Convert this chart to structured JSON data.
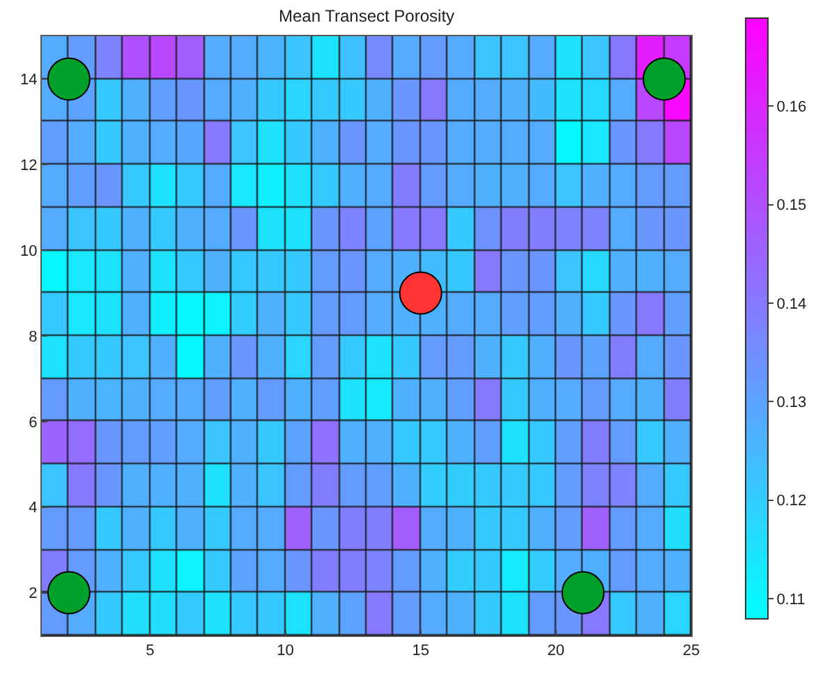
{
  "chart_data": {
    "type": "heatmap",
    "title": "Mean Transect Porosity",
    "x": [
      1.5,
      2.5,
      3.5,
      4.5,
      5.5,
      6.5,
      7.5,
      8.5,
      9.5,
      10.5,
      11.5,
      12.5,
      13.5,
      14.5,
      15.5,
      16.5,
      17.5,
      18.5,
      19.5,
      20.5,
      21.5,
      22.5,
      23.5,
      24.5
    ],
    "y": [
      14.5,
      13.5,
      12.5,
      11.5,
      10.5,
      9.5,
      8.5,
      7.5,
      6.5,
      5.5,
      4.5,
      3.5,
      2.5,
      1.5
    ],
    "cells": [
      [
        0.128,
        0.132,
        0.138,
        0.15,
        0.152,
        0.147,
        0.128,
        0.128,
        0.126,
        0.122,
        0.115,
        0.123,
        0.136,
        0.128,
        0.132,
        0.128,
        0.122,
        0.122,
        0.128,
        0.115,
        0.122,
        0.14,
        0.162,
        0.155
      ],
      [
        0.128,
        0.13,
        0.121,
        0.127,
        0.131,
        0.133,
        0.128,
        0.127,
        0.121,
        0.118,
        0.121,
        0.121,
        0.127,
        0.133,
        0.14,
        0.128,
        0.128,
        0.127,
        0.124,
        0.115,
        0.117,
        0.128,
        0.152,
        0.167
      ],
      [
        0.131,
        0.128,
        0.121,
        0.127,
        0.128,
        0.129,
        0.14,
        0.122,
        0.115,
        0.121,
        0.127,
        0.133,
        0.128,
        0.133,
        0.133,
        0.128,
        0.128,
        0.128,
        0.128,
        0.11,
        0.114,
        0.133,
        0.14,
        0.152
      ],
      [
        0.128,
        0.131,
        0.133,
        0.121,
        0.115,
        0.121,
        0.128,
        0.114,
        0.112,
        0.115,
        0.121,
        0.127,
        0.128,
        0.139,
        0.132,
        0.128,
        0.127,
        0.127,
        0.128,
        0.122,
        0.127,
        0.128,
        0.132,
        0.132
      ],
      [
        0.128,
        0.122,
        0.121,
        0.127,
        0.121,
        0.127,
        0.128,
        0.133,
        0.115,
        0.115,
        0.133,
        0.138,
        0.13,
        0.14,
        0.14,
        0.121,
        0.134,
        0.139,
        0.139,
        0.138,
        0.138,
        0.128,
        0.133,
        0.133
      ],
      [
        0.11,
        0.114,
        0.115,
        0.127,
        0.115,
        0.121,
        0.127,
        0.121,
        0.121,
        0.121,
        0.132,
        0.133,
        0.128,
        0.127,
        0.124,
        0.121,
        0.14,
        0.133,
        0.133,
        0.122,
        0.117,
        0.127,
        0.127,
        0.128
      ],
      [
        0.121,
        0.114,
        0.115,
        0.127,
        0.112,
        0.11,
        0.111,
        0.12,
        0.127,
        0.121,
        0.132,
        0.132,
        0.128,
        0.127,
        0.127,
        0.128,
        0.128,
        0.131,
        0.131,
        0.127,
        0.121,
        0.133,
        0.14,
        0.131
      ],
      [
        0.115,
        0.121,
        0.121,
        0.122,
        0.127,
        0.11,
        0.127,
        0.133,
        0.127,
        0.118,
        0.132,
        0.121,
        0.115,
        0.121,
        0.132,
        0.132,
        0.127,
        0.121,
        0.127,
        0.133,
        0.13,
        0.139,
        0.128,
        0.133
      ],
      [
        0.132,
        0.127,
        0.126,
        0.127,
        0.128,
        0.128,
        0.131,
        0.127,
        0.132,
        0.127,
        0.131,
        0.115,
        0.113,
        0.127,
        0.127,
        0.131,
        0.14,
        0.121,
        0.127,
        0.128,
        0.132,
        0.128,
        0.127,
        0.139
      ],
      [
        0.145,
        0.143,
        0.133,
        0.132,
        0.131,
        0.128,
        0.122,
        0.127,
        0.121,
        0.13,
        0.142,
        0.127,
        0.127,
        0.121,
        0.121,
        0.127,
        0.131,
        0.115,
        0.121,
        0.131,
        0.139,
        0.132,
        0.121,
        0.127
      ],
      [
        0.122,
        0.14,
        0.133,
        0.127,
        0.127,
        0.127,
        0.115,
        0.127,
        0.122,
        0.132,
        0.139,
        0.132,
        0.131,
        0.127,
        0.12,
        0.12,
        0.121,
        0.121,
        0.121,
        0.132,
        0.138,
        0.138,
        0.128,
        0.121
      ],
      [
        0.132,
        0.132,
        0.121,
        0.127,
        0.121,
        0.127,
        0.121,
        0.128,
        0.128,
        0.146,
        0.133,
        0.139,
        0.139,
        0.147,
        0.128,
        0.127,
        0.121,
        0.121,
        0.127,
        0.132,
        0.146,
        0.132,
        0.128,
        0.116
      ],
      [
        0.139,
        0.132,
        0.127,
        0.121,
        0.115,
        0.111,
        0.121,
        0.13,
        0.128,
        0.133,
        0.139,
        0.139,
        0.138,
        0.132,
        0.127,
        0.12,
        0.121,
        0.113,
        0.12,
        0.128,
        0.127,
        0.132,
        0.128,
        0.127
      ],
      [
        0.132,
        0.128,
        0.121,
        0.116,
        0.116,
        0.121,
        0.115,
        0.121,
        0.121,
        0.115,
        0.127,
        0.13,
        0.14,
        0.132,
        0.128,
        0.127,
        0.121,
        0.115,
        0.132,
        0.133,
        0.14,
        0.121,
        0.127,
        0.118
      ]
    ],
    "colors": [
      "#00ffff",
      "#ff00ff"
    ],
    "clim": [
      0.108,
      0.169
    ],
    "cticks": [
      0.11,
      0.12,
      0.13,
      0.14,
      0.15,
      0.16
    ],
    "xlim": [
      1,
      25
    ],
    "xticks": [
      5,
      10,
      15,
      20,
      25
    ],
    "ylim": [
      1,
      15
    ],
    "yticks": [
      2,
      4,
      6,
      8,
      10,
      12,
      14
    ],
    "series": [
      {
        "type": "scatter",
        "marker": "circle",
        "x": [
          2,
          2,
          21,
          24,
          15
        ],
        "values": [
          2,
          14,
          2,
          14,
          9
        ],
        "colors": [
          "#00a02a",
          "#00a02a",
          "#00a02a",
          "#00a02a",
          "#ff3333"
        ]
      }
    ]
  }
}
